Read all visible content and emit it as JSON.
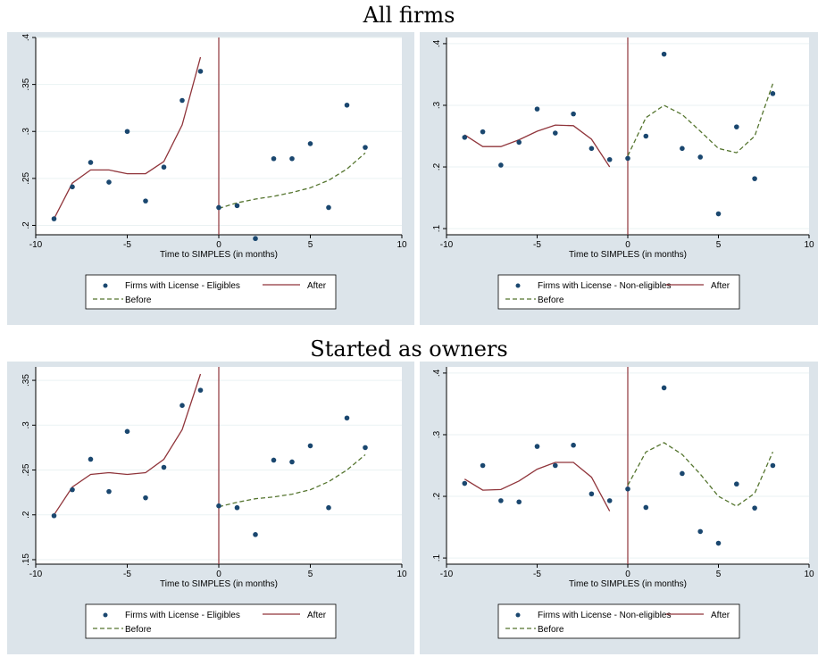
{
  "sections": [
    {
      "title": "All firms"
    },
    {
      "title": "Started as owners"
    }
  ],
  "colors": {
    "panel_bg": "#dce4ea",
    "plot_bg": "#ffffff",
    "points": "#1a476f",
    "after_line": "#90353b",
    "before_line": "#55752f",
    "vline": "#90353b",
    "grid": "#eaf2f3"
  },
  "chart_data": [
    {
      "type": "scatter",
      "section": "All firms",
      "xlabel": "Time to SIMPLES (in months)",
      "ylabel": "",
      "xlim": [
        -10,
        10
      ],
      "ylim": [
        0.19,
        0.4
      ],
      "xticks": [
        -10,
        -5,
        0,
        5,
        10
      ],
      "yticks": [
        0.2,
        0.25,
        0.3,
        0.35,
        0.4
      ],
      "ytick_labels": [
        ".2",
        ".25",
        ".3",
        ".35",
        ".4"
      ],
      "grid": true,
      "vline_x": 0,
      "legend_position": "bottom",
      "series": [
        {
          "name": "Firms with License - Eligibles",
          "kind": "points",
          "x": [
            -9,
            -8,
            -7,
            -6,
            -5,
            -4,
            -3,
            -2,
            -1,
            0,
            1,
            2,
            3,
            4,
            5,
            6,
            7,
            8
          ],
          "y": [
            0.207,
            0.241,
            0.267,
            0.246,
            0.3,
            0.226,
            0.262,
            0.333,
            0.364,
            0.219,
            0.221,
            0.186,
            0.271,
            0.271,
            0.287,
            0.219,
            0.328,
            0.283
          ]
        },
        {
          "name": "After",
          "kind": "solid",
          "x": [
            -9,
            -8,
            -7,
            -6,
            -5,
            -4,
            -3,
            -2,
            -1
          ],
          "y": [
            0.207,
            0.245,
            0.259,
            0.259,
            0.255,
            0.255,
            0.268,
            0.307,
            0.379
          ]
        },
        {
          "name": "Before",
          "kind": "dashed",
          "x": [
            0,
            1,
            2,
            3,
            4,
            5,
            6,
            7,
            8
          ],
          "y": [
            0.218,
            0.224,
            0.228,
            0.231,
            0.235,
            0.24,
            0.248,
            0.26,
            0.277
          ]
        }
      ]
    },
    {
      "type": "scatter",
      "section": "All firms",
      "xlabel": "Time to SIMPLES (in months)",
      "ylabel": "",
      "xlim": [
        -10,
        10
      ],
      "ylim": [
        0.09,
        0.41
      ],
      "xticks": [
        -10,
        -5,
        0,
        5,
        10
      ],
      "yticks": [
        0.1,
        0.2,
        0.3,
        0.4
      ],
      "ytick_labels": [
        ".1",
        ".2",
        ".3",
        ".4"
      ],
      "grid": true,
      "vline_x": 0,
      "legend_position": "bottom",
      "series": [
        {
          "name": "Firms with License - Non-eligibles",
          "kind": "points",
          "x": [
            -9,
            -8,
            -7,
            -6,
            -5,
            -4,
            -3,
            -2,
            -1,
            0,
            1,
            2,
            3,
            4,
            5,
            6,
            7,
            8
          ],
          "y": [
            0.248,
            0.257,
            0.203,
            0.24,
            0.294,
            0.255,
            0.286,
            0.23,
            0.212,
            0.214,
            0.25,
            0.383,
            0.23,
            0.216,
            0.124,
            0.265,
            0.181,
            0.319
          ]
        },
        {
          "name": "After",
          "kind": "solid",
          "x": [
            -9,
            -8,
            -7,
            -6,
            -5,
            -4,
            -3,
            -2,
            -1
          ],
          "y": [
            0.252,
            0.233,
            0.233,
            0.244,
            0.258,
            0.268,
            0.267,
            0.245,
            0.2
          ]
        },
        {
          "name": "Before",
          "kind": "dashed",
          "x": [
            0,
            1,
            2,
            3,
            4,
            5,
            6,
            7,
            8
          ],
          "y": [
            0.218,
            0.28,
            0.3,
            0.285,
            0.258,
            0.23,
            0.223,
            0.25,
            0.335
          ]
        }
      ]
    },
    {
      "type": "scatter",
      "section": "Started as owners",
      "xlabel": "Time to SIMPLES (in months)",
      "ylabel": "",
      "xlim": [
        -10,
        10
      ],
      "ylim": [
        0.145,
        0.365
      ],
      "xticks": [
        -10,
        -5,
        0,
        5,
        10
      ],
      "yticks": [
        0.15,
        0.2,
        0.25,
        0.3,
        0.35
      ],
      "ytick_labels": [
        ".15",
        ".2",
        ".25",
        ".3",
        ".35"
      ],
      "grid": true,
      "vline_x": 0,
      "legend_position": "bottom",
      "series": [
        {
          "name": "Firms with License - Eligibles",
          "kind": "points",
          "x": [
            -9,
            -8,
            -7,
            -6,
            -5,
            -4,
            -3,
            -2,
            -1,
            0,
            1,
            2,
            3,
            4,
            5,
            6,
            7,
            8
          ],
          "y": [
            0.199,
            0.228,
            0.262,
            0.226,
            0.293,
            0.219,
            0.253,
            0.322,
            0.339,
            0.21,
            0.208,
            0.178,
            0.261,
            0.259,
            0.277,
            0.208,
            0.308,
            0.275
          ]
        },
        {
          "name": "After",
          "kind": "solid",
          "x": [
            -9,
            -8,
            -7,
            -6,
            -5,
            -4,
            -3,
            -2,
            -1
          ],
          "y": [
            0.2,
            0.231,
            0.245,
            0.247,
            0.245,
            0.247,
            0.262,
            0.295,
            0.357
          ]
        },
        {
          "name": "Before",
          "kind": "dashed",
          "x": [
            0,
            1,
            2,
            3,
            4,
            5,
            6,
            7,
            8
          ],
          "y": [
            0.209,
            0.214,
            0.218,
            0.22,
            0.223,
            0.228,
            0.237,
            0.25,
            0.267
          ]
        }
      ]
    },
    {
      "type": "scatter",
      "section": "Started as owners",
      "xlabel": "Time to SIMPLES (in months)",
      "ylabel": "",
      "xlim": [
        -10,
        10
      ],
      "ylim": [
        0.09,
        0.41
      ],
      "xticks": [
        -10,
        -5,
        0,
        5,
        10
      ],
      "yticks": [
        0.1,
        0.2,
        0.3,
        0.4
      ],
      "ytick_labels": [
        ".1",
        ".2",
        ".3",
        ".4"
      ],
      "grid": true,
      "vline_x": 0,
      "legend_position": "bottom",
      "series": [
        {
          "name": "Firms with License - Non-eligibles",
          "kind": "points",
          "x": [
            -9,
            -8,
            -7,
            -6,
            -5,
            -4,
            -3,
            -2,
            -1,
            0,
            1,
            2,
            3,
            4,
            5,
            6,
            7,
            8
          ],
          "y": [
            0.221,
            0.25,
            0.193,
            0.191,
            0.281,
            0.25,
            0.283,
            0.204,
            0.193,
            0.212,
            0.182,
            0.376,
            0.237,
            0.143,
            0.124,
            0.22,
            0.181,
            0.25
          ]
        },
        {
          "name": "After",
          "kind": "solid",
          "x": [
            -9,
            -8,
            -7,
            -6,
            -5,
            -4,
            -3,
            -2,
            -1
          ],
          "y": [
            0.228,
            0.21,
            0.211,
            0.225,
            0.244,
            0.255,
            0.255,
            0.231,
            0.176
          ]
        },
        {
          "name": "Before",
          "kind": "dashed",
          "x": [
            0,
            1,
            2,
            3,
            4,
            5,
            6,
            7,
            8
          ],
          "y": [
            0.218,
            0.272,
            0.287,
            0.268,
            0.236,
            0.2,
            0.184,
            0.205,
            0.272
          ]
        }
      ]
    }
  ]
}
